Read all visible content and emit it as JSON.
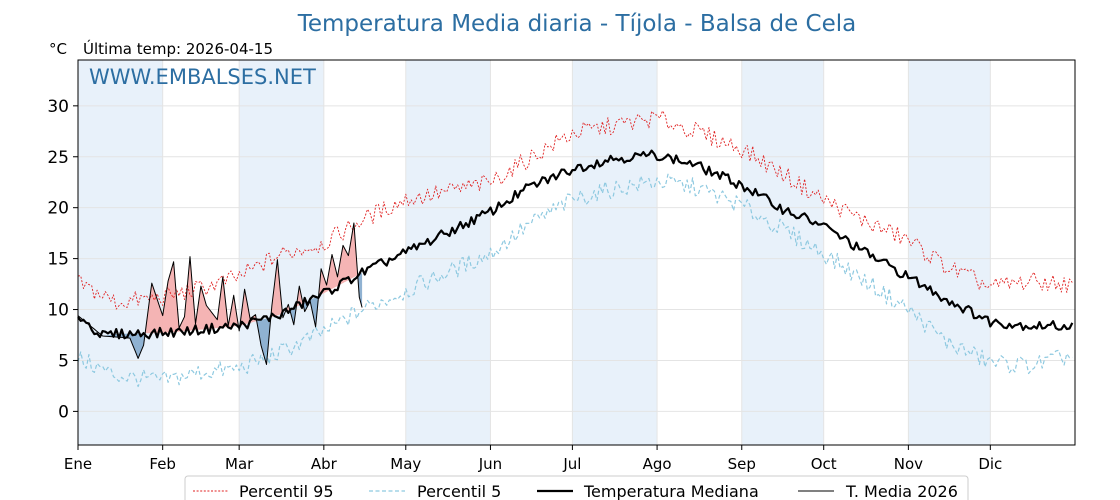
{
  "chart_data": {
    "type": "line",
    "title": "Temperatura Media diaria - Tíjola - Balsa de Cela",
    "unit": "°C",
    "subtitle": "Última temp: 2026-04-15",
    "watermark": "WWW.EMBALSES.NET",
    "ylim": [
      -3.3,
      34.5
    ],
    "yticks": [
      0,
      5,
      10,
      15,
      20,
      25,
      30
    ],
    "xlim": [
      1,
      366
    ],
    "months": [
      "Ene",
      "Feb",
      "Mar",
      "Abr",
      "May",
      "Jun",
      "Jul",
      "Ago",
      "Sep",
      "Oct",
      "Nov",
      "Dic"
    ],
    "month_starts": [
      1,
      32,
      60,
      91,
      121,
      152,
      182,
      213,
      244,
      274,
      305,
      335
    ],
    "grid": true,
    "legend_position": "bottom",
    "colors": {
      "p95": "#e02020",
      "p5": "#8ec9e0",
      "median": "#000000",
      "current": "#000000",
      "above": "#f4b0b0",
      "below": "#8aaed0",
      "band": "#e8f1fa",
      "title": "#2c6ea2"
    },
    "series": [
      {
        "name": "Percentil 95",
        "style": "dotted-red",
        "x": [
          1,
          15,
          32,
          45,
          60,
          75,
          91,
          105,
          121,
          135,
          152,
          166,
          182,
          196,
          213,
          227,
          244,
          258,
          274,
          288,
          305,
          319,
          335,
          350,
          365
        ],
        "y": [
          12.6,
          10.7,
          11.2,
          12.0,
          13.2,
          15.4,
          16.5,
          18.8,
          20.8,
          21.5,
          22.5,
          24.8,
          27.3,
          28.0,
          28.8,
          27.5,
          25.8,
          23.5,
          20.8,
          18.8,
          16.8,
          14.2,
          12.2,
          12.8,
          12.4
        ]
      },
      {
        "name": "Percentil 5",
        "style": "dashed-lightblue",
        "x": [
          1,
          15,
          32,
          45,
          60,
          75,
          91,
          105,
          121,
          135,
          152,
          166,
          182,
          196,
          213,
          227,
          244,
          258,
          274,
          288,
          305,
          319,
          335,
          350,
          365
        ],
        "y": [
          5.2,
          3.5,
          3.0,
          3.8,
          4.2,
          5.8,
          7.8,
          10.0,
          11.8,
          13.5,
          15.5,
          18.3,
          20.8,
          21.8,
          22.6,
          22.0,
          20.2,
          18.0,
          15.5,
          13.0,
          10.0,
          6.8,
          4.8,
          4.5,
          5.5
        ]
      },
      {
        "name": "Temperatura Mediana",
        "style": "thick-black",
        "x": [
          1,
          10,
          15,
          32,
          45,
          60,
          75,
          91,
          105,
          121,
          135,
          152,
          166,
          182,
          196,
          213,
          227,
          244,
          258,
          274,
          288,
          305,
          319,
          335,
          350,
          365
        ],
        "y": [
          9.4,
          7.4,
          7.6,
          7.7,
          8.0,
          8.4,
          9.5,
          11.6,
          13.6,
          15.6,
          17.4,
          19.6,
          22.0,
          23.8,
          24.8,
          25.2,
          24.2,
          22.2,
          20.0,
          18.2,
          15.8,
          13.2,
          11.0,
          8.8,
          8.4,
          8.4
        ]
      },
      {
        "name": "T. Media 2026",
        "style": "thin-black",
        "x": [
          1,
          10,
          20,
          23,
          25,
          28,
          30,
          32,
          34,
          36,
          38,
          40,
          42,
          44,
          46,
          48,
          50,
          52,
          54,
          56,
          58,
          60,
          62,
          64,
          66,
          68,
          70,
          72,
          74,
          76,
          78,
          80,
          82,
          84,
          86,
          88,
          90,
          92,
          94,
          96,
          98,
          100,
          102,
          104,
          105
        ],
        "y": [
          9.4,
          7.4,
          7.2,
          5.2,
          6.5,
          12.6,
          11.0,
          9.4,
          12.8,
          14.7,
          8.2,
          9.3,
          15.2,
          8.6,
          12.3,
          10.4,
          9.7,
          9.0,
          13.2,
          8.4,
          11.4,
          7.9,
          12.0,
          9.1,
          9.5,
          6.5,
          4.6,
          10.4,
          14.9,
          9.2,
          10.5,
          8.5,
          12.3,
          9.8,
          10.8,
          8.3,
          14.0,
          12.4,
          15.4,
          13.2,
          16.3,
          15.3,
          18.5,
          11.2,
          10.2
        ]
      }
    ]
  }
}
